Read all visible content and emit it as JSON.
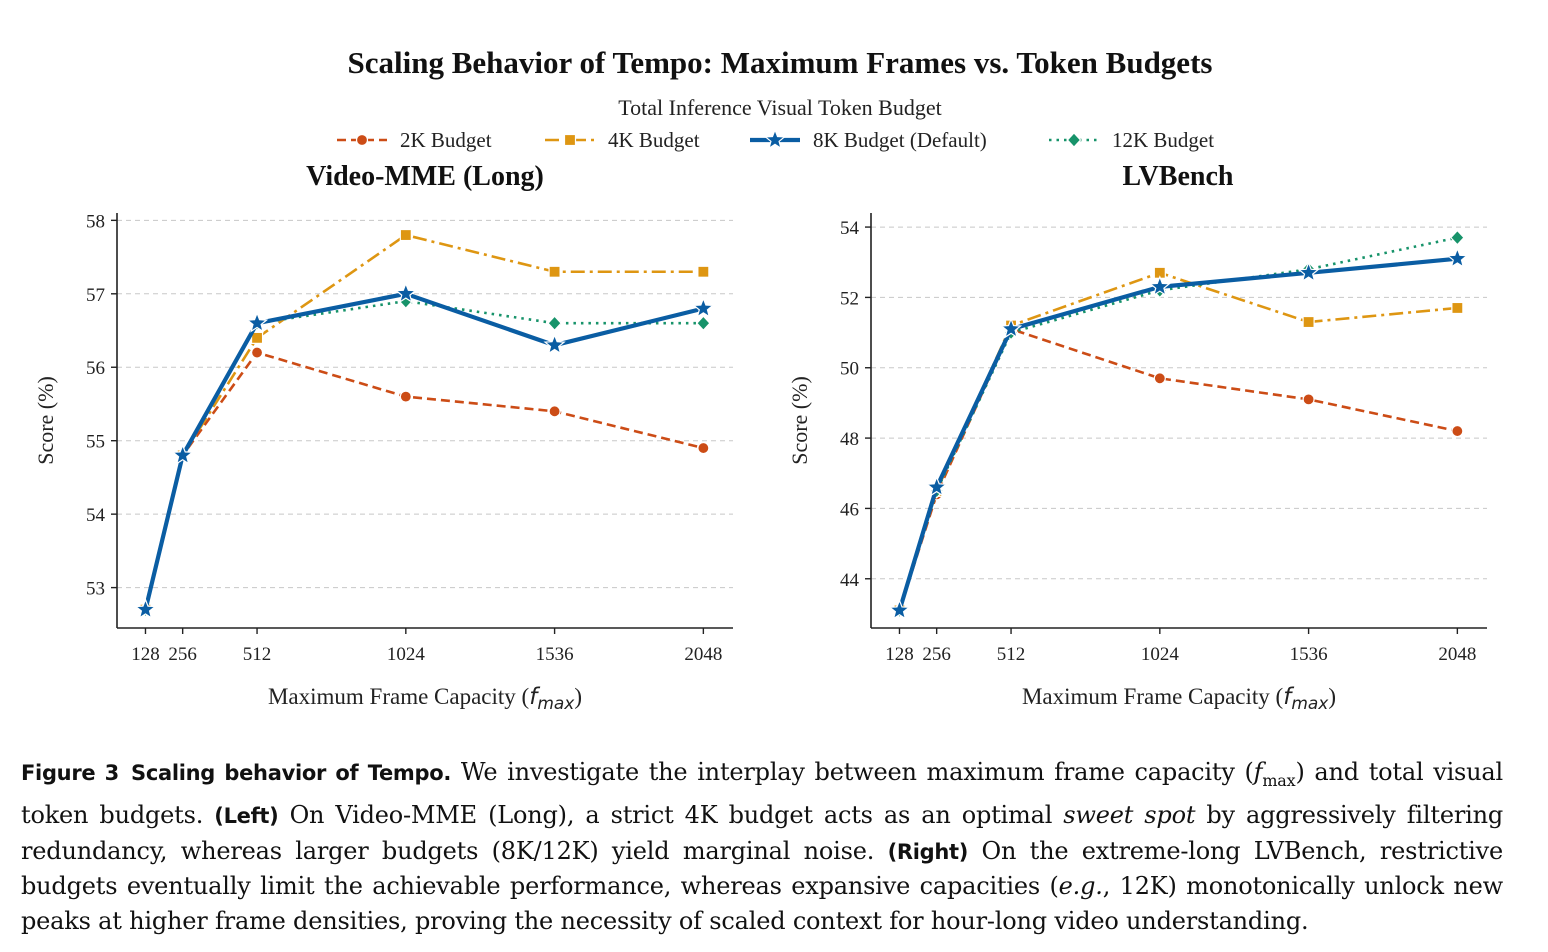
{
  "figure": {
    "suptitle": "Scaling Behavior of Tempo: Maximum Frames vs. Token Budgets",
    "legend_title": "Total Inference Visual Token Budget",
    "legend_placement": "top-center",
    "legend": [
      {
        "label": "2K Budget",
        "color": "#CC4C16",
        "marker": "circle",
        "line": "dashed"
      },
      {
        "label": "4K Budget",
        "color": "#DE9612",
        "marker": "square",
        "line": "dashdot"
      },
      {
        "label": "8K Budget (Default)",
        "color": "#0A5DA3",
        "marker": "star",
        "line": "solid"
      },
      {
        "label": "12K Budget",
        "color": "#17936A",
        "marker": "diamond",
        "line": "dotted"
      }
    ]
  },
  "chart_data": [
    {
      "type": "line",
      "title": "Video-MME (Long)",
      "xlabel_text": "Maximum Frame Capacity (",
      "xlabel_math": "f",
      "xlabel_sub": "max",
      "xlabel_close": ")",
      "ylabel": "Score (%)",
      "x": [
        128,
        256,
        512,
        1024,
        1536,
        2048
      ],
      "xticks": [
        "128",
        "256",
        "512",
        "1024",
        "1536",
        "2048"
      ],
      "yticks": [
        53,
        54,
        55,
        56,
        57,
        58
      ],
      "xlim": [
        30,
        2150
      ],
      "ylim": [
        52.45,
        58.1
      ],
      "grid": "y-dashed",
      "series": [
        {
          "name": "2K Budget",
          "values": [
            52.7,
            54.8,
            56.2,
            55.6,
            55.4,
            54.9
          ]
        },
        {
          "name": "4K Budget",
          "values": [
            52.7,
            54.8,
            56.4,
            57.8,
            57.3,
            57.3
          ]
        },
        {
          "name": "8K Budget (Default)",
          "values": [
            52.7,
            54.8,
            56.6,
            57.0,
            56.3,
            56.8
          ]
        },
        {
          "name": "12K Budget",
          "values": [
            52.7,
            54.8,
            56.6,
            56.9,
            56.6,
            56.6
          ]
        }
      ]
    },
    {
      "type": "line",
      "title": "LVBench",
      "xlabel_text": "Maximum Frame Capacity (",
      "xlabel_math": "f",
      "xlabel_sub": "max",
      "xlabel_close": ")",
      "ylabel": "Score (%)",
      "x": [
        128,
        256,
        512,
        1024,
        1536,
        2048
      ],
      "xticks": [
        "128",
        "256",
        "512",
        "1024",
        "1536",
        "2048"
      ],
      "yticks": [
        44,
        46,
        48,
        50,
        52,
        54
      ],
      "xlim": [
        30,
        2150
      ],
      "ylim": [
        42.6,
        54.4
      ],
      "grid": "y-dashed",
      "series": [
        {
          "name": "2K Budget",
          "values": [
            43.1,
            46.4,
            51.1,
            49.7,
            49.1,
            48.2
          ]
        },
        {
          "name": "4K Budget",
          "values": [
            43.1,
            46.5,
            51.2,
            52.7,
            51.3,
            51.7
          ]
        },
        {
          "name": "8K Budget (Default)",
          "values": [
            43.1,
            46.6,
            51.1,
            52.3,
            52.7,
            53.1
          ]
        },
        {
          "name": "12K Budget",
          "values": [
            43.1,
            46.5,
            51.0,
            52.2,
            52.8,
            53.7
          ]
        }
      ]
    }
  ],
  "caption": {
    "label": "Figure 3",
    "heading": "Scaling behavior of Tempo.",
    "s1": "We investigate the interplay between maximum frame capacity (",
    "s1_math": "f",
    "s1_sub": "max",
    "s1_end": ") and total visual token budgets.",
    "left_tag": "(Left)",
    "s2": "On Video-MME (Long), a strict 4K budget acts as an optimal",
    "s2_it": "sweet spot",
    "s2_end": "by aggressively filtering redundancy, whereas larger budgets (8K/12K) yield marginal noise.",
    "right_tag": "(Right)",
    "s3": "On the extreme-long LVBench, restrictive budgets eventually limit the achievable performance, whereas expansive capacities (",
    "s3_it": "e.g.",
    "s3_end": ", 12K) monotonically unlock new peaks at higher frame densities, proving the necessity of scaled context for hour-long video understanding."
  }
}
